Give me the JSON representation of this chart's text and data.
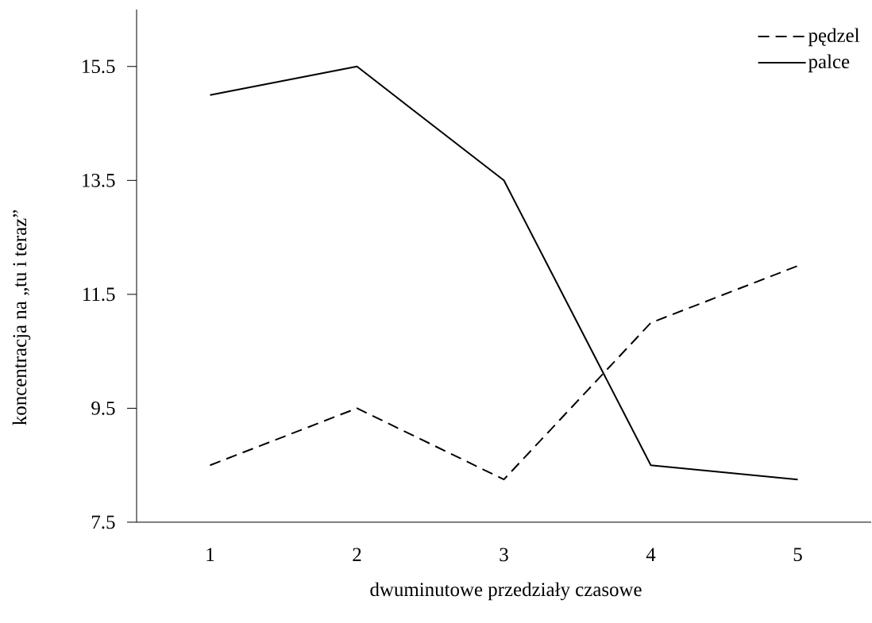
{
  "chart_data": {
    "type": "line",
    "xlabel": "dwuminutowe przedziały czasowe",
    "ylabel": "koncentracja na „tu i teraz”",
    "categories": [
      "1",
      "2",
      "3",
      "4",
      "5"
    ],
    "series": [
      {
        "name": "pędzel",
        "color": "#000000",
        "line_style": "dashed",
        "values": [
          8.5,
          9.5,
          8.25,
          11.0,
          12.0
        ]
      },
      {
        "name": "palce",
        "color": "#000000",
        "line_style": "solid",
        "values": [
          15.0,
          15.5,
          13.5,
          8.5,
          8.25
        ]
      }
    ],
    "ylim": [
      7.5,
      16.5
    ],
    "yticks": [
      7.5,
      9.5,
      11.5,
      13.5,
      15.5
    ],
    "grid": false,
    "legend": "top right",
    "marker": "none"
  }
}
